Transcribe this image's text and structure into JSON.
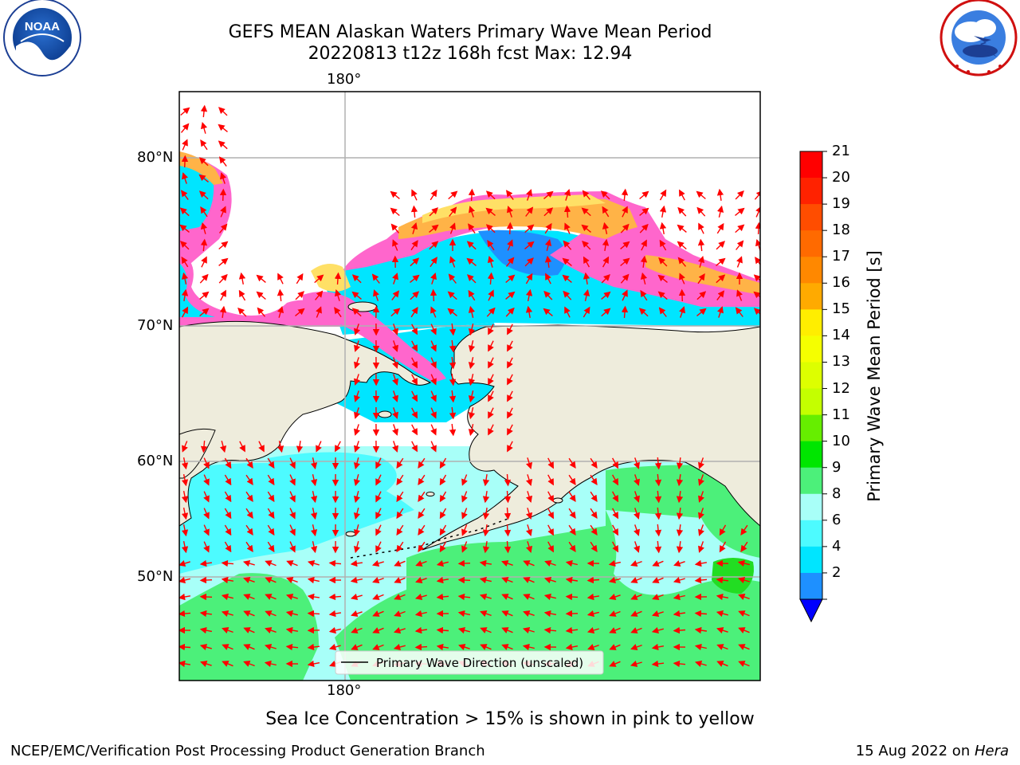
{
  "header": {
    "title_line1": "GEFS MEAN Alaskan Waters Primary Wave Mean Period",
    "title_line2": "20220813 t12z 168h fcst   Max: 12.94"
  },
  "logos": {
    "left": "NOAA",
    "left_ring_text": "NATIONAL OCEANIC AND ATMOSPHERIC ADMINISTRATION · U.S. DEPARTMENT OF COMMERCE",
    "right_ring_text": "NATIONAL WEATHER SERVICE"
  },
  "map": {
    "lon_label_top": "180°",
    "lon_label_bottom": "180°",
    "lat_labels": [
      "80°N",
      "70°N",
      "60°N",
      "50°N"
    ],
    "legend_label": "Primary Wave Direction (unscaled)",
    "colors": {
      "land": "#eeecdc",
      "ice_pink": "#ff66cc",
      "ice_orange": "#ffb347",
      "ice_yellow": "#ffe066",
      "period_2_4": "#1e90ff",
      "period_4_6": "#00e5ff",
      "period_6_8": "#4dfbff",
      "period_8_9": "#a8fff8",
      "period_9_10": "#4cf07a",
      "arrow": "#ff0000",
      "grid": "#b0b0b0"
    }
  },
  "colorbar": {
    "label": "Primary Wave Mean Period [s]",
    "ticks": [
      "21",
      "20",
      "19",
      "18",
      "17",
      "16",
      "15",
      "14",
      "13",
      "12",
      "11",
      "10",
      "9",
      "8",
      "6",
      "4",
      "2"
    ],
    "bands": [
      "#ff0000",
      "#ff2200",
      "#ff4d00",
      "#ff6a00",
      "#ff8800",
      "#ffaa00",
      "#ffee00",
      "#f5ff00",
      "#ddff00",
      "#c4ff00",
      "#66ee00",
      "#00e600",
      "#4cf07a",
      "#a8fff8",
      "#4dfbff",
      "#00e5ff",
      "#1e90ff"
    ],
    "extend_color": "#0000ff"
  },
  "footer": {
    "ice_note": "Sea Ice Concentration > 15% is shown in pink to yellow",
    "org": "NCEP/EMC/Verification Post Processing Product Generation Branch",
    "date": "15 Aug 2022 on ",
    "machine": "Hera"
  }
}
